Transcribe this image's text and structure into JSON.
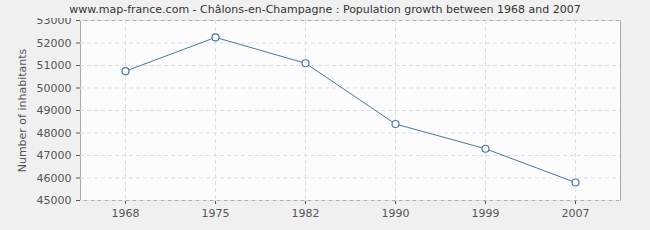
{
  "chart_data": {
    "type": "line",
    "title": "www.map-france.com - Châlons-en-Champagne : Population growth between 1968 and 2007",
    "y_label": "Number of inhabitants",
    "categories": [
      "1968",
      "1975",
      "1982",
      "1990",
      "1999",
      "2007"
    ],
    "values": [
      50750,
      52250,
      51100,
      48400,
      47300,
      45800
    ],
    "color": "#4a76a8",
    "marker": "circle",
    "line_style": "solid",
    "ylim": [
      45000,
      53000
    ],
    "yticks": [
      45000,
      46000,
      47000,
      48000,
      49000,
      50000,
      51000,
      52000,
      53000
    ],
    "grid": true
  }
}
